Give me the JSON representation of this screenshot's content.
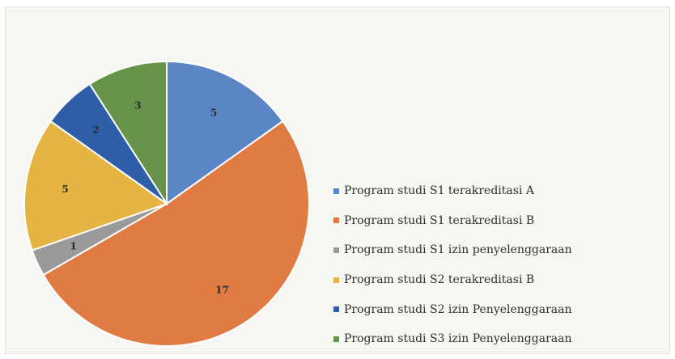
{
  "chart_data": {
    "type": "pie",
    "title": "",
    "categories": [
      "Program studi S1 terakreditasi A",
      "Program studi S1 terakreditasi B",
      "Program studi S1 izin penyelenggaraan",
      "Program studi S2 terakreditasi B",
      "Program studi S2 izin Penyelenggaraan",
      "Program studi S3 izin Penyelenggaraan"
    ],
    "values": [
      5,
      17,
      1,
      5,
      2,
      3
    ],
    "colors": [
      "#5b86c6",
      "#e07b43",
      "#9a9a9a",
      "#e6b443",
      "#2e5ea7",
      "#66924a"
    ],
    "legend_position": "right"
  }
}
